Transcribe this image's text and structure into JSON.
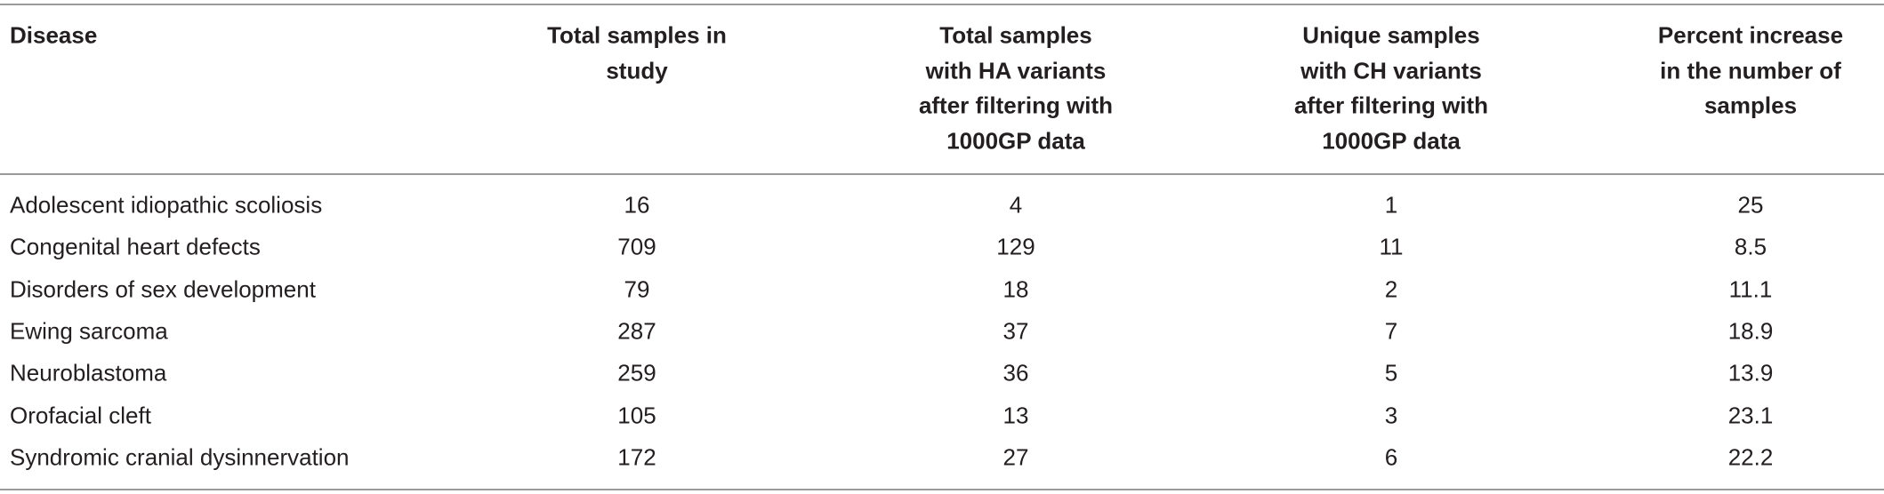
{
  "table": {
    "header": [
      [
        "Disease"
      ],
      [
        "Total samples in",
        "study"
      ],
      [
        "Total samples",
        "with HA variants",
        "after filtering with",
        "1000GP data"
      ],
      [
        "Unique samples",
        "with CH variants",
        "after filtering with",
        "1000GP data"
      ],
      [
        "Percent increase",
        "in the number of",
        "samples"
      ]
    ],
    "rows": [
      [
        "Adolescent idiopathic scoliosis",
        16,
        4,
        1,
        25
      ],
      [
        "Congenital heart defects",
        709,
        129,
        11,
        8.5
      ],
      [
        "Disorders of sex development",
        79,
        18,
        2,
        11.1
      ],
      [
        "Ewing sarcoma",
        287,
        37,
        7,
        18.9
      ],
      [
        "Neuroblastoma",
        259,
        36,
        5,
        13.9
      ],
      [
        "Orofacial cleft",
        105,
        13,
        3,
        23.1
      ],
      [
        "Syndromic cranial dysinnervation",
        172,
        27,
        6,
        22.2
      ]
    ]
  }
}
